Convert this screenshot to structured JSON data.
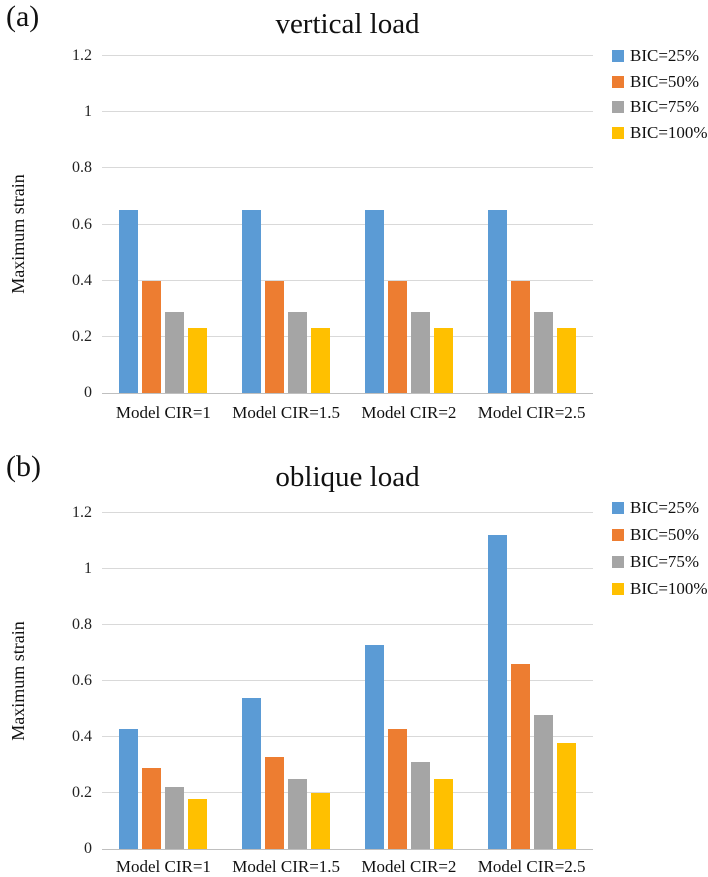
{
  "panels": [
    {
      "label": "(a)"
    },
    {
      "label": "(b)"
    }
  ],
  "colors": {
    "series_blue": "#5B9BD5",
    "series_orange": "#ED7D31",
    "series_gray": "#A5A5A5",
    "series_yellow": "#FFC000",
    "gridline": "#D9D9D9",
    "axisline": "#BFBFBF"
  },
  "chart_data": [
    {
      "type": "bar",
      "title": "vertical load",
      "xlabel": "",
      "ylabel": "Maximum strain",
      "categories": [
        "Model CIR=1",
        "Model CIR=1.5",
        "Model CIR=2",
        "Model CIR=2.5"
      ],
      "series": [
        {
          "name": "BIC=25%",
          "color": "#5B9BD5",
          "values": [
            0.65,
            0.65,
            0.65,
            0.65
          ]
        },
        {
          "name": "BIC=50%",
          "color": "#ED7D31",
          "values": [
            0.4,
            0.4,
            0.4,
            0.4
          ]
        },
        {
          "name": "BIC=75%",
          "color": "#A5A5A5",
          "values": [
            0.29,
            0.29,
            0.29,
            0.29
          ]
        },
        {
          "name": "BIC=100%",
          "color": "#FFC000",
          "values": [
            0.23,
            0.23,
            0.23,
            0.23
          ]
        }
      ],
      "ylim": [
        0,
        1.2
      ],
      "yticks": [
        0,
        0.2,
        0.4,
        0.6,
        0.8,
        1,
        1.2
      ],
      "ytick_labels": [
        "0",
        "0.2",
        "0.4",
        "0.6",
        "0.8",
        "1",
        "1.2"
      ],
      "grid": true,
      "legend_position": "right"
    },
    {
      "type": "bar",
      "title": "oblique load",
      "xlabel": "",
      "ylabel": "Maximum strain",
      "categories": [
        "Model CIR=1",
        "Model CIR=1.5",
        "Model CIR=2",
        "Model CIR=2.5"
      ],
      "series": [
        {
          "name": "BIC=25%",
          "color": "#5B9BD5",
          "values": [
            0.43,
            0.54,
            0.73,
            1.12
          ]
        },
        {
          "name": "BIC=50%",
          "color": "#ED7D31",
          "values": [
            0.29,
            0.33,
            0.43,
            0.66
          ]
        },
        {
          "name": "BIC=75%",
          "color": "#A5A5A5",
          "values": [
            0.22,
            0.25,
            0.31,
            0.48
          ]
        },
        {
          "name": "BIC=100%",
          "color": "#FFC000",
          "values": [
            0.18,
            0.2,
            0.25,
            0.38
          ]
        }
      ],
      "ylim": [
        0,
        1.2
      ],
      "yticks": [
        0,
        0.2,
        0.4,
        0.6,
        0.8,
        1,
        1.2
      ],
      "ytick_labels": [
        "0",
        "0.2",
        "0.4",
        "0.6",
        "0.8",
        "1",
        "1.2"
      ],
      "grid": true,
      "legend_position": "right"
    }
  ]
}
